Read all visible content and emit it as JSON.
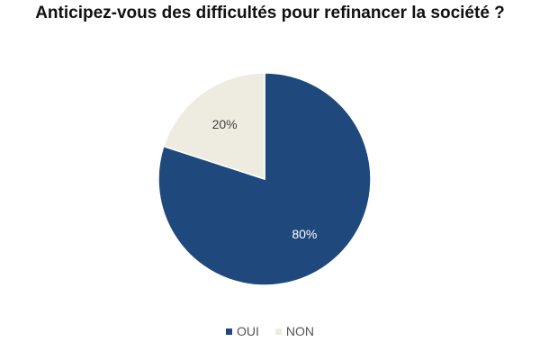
{
  "chart_data": {
    "type": "pie",
    "title": "Anticipez-vous des difficultés pour refinancer la société ?",
    "slices": [
      {
        "name": "OUI",
        "value": 80,
        "label": "80%",
        "color": "#1f497d",
        "label_color": "#ffffff"
      },
      {
        "name": "NON",
        "value": 20,
        "label": "20%",
        "color": "#eeece1",
        "label_color": "#404040"
      }
    ],
    "legend_position": "bottom"
  }
}
